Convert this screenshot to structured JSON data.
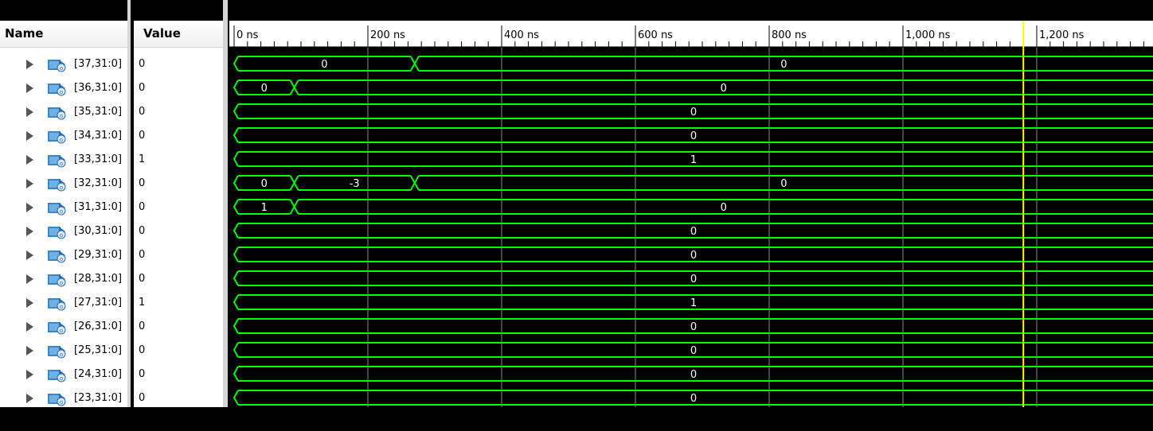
{
  "columns": {
    "name": "Name",
    "value": "Value"
  },
  "signals": [
    {
      "name": "[37,31:0]",
      "value": "0",
      "segments": [
        {
          "from": 0,
          "to": 270,
          "label": "0"
        },
        {
          "from": 270,
          "to": 1400,
          "label": "0"
        }
      ]
    },
    {
      "name": "[36,31:0]",
      "value": "0",
      "segments": [
        {
          "from": 0,
          "to": 90,
          "label": "0"
        },
        {
          "from": 90,
          "to": 1400,
          "label": "0"
        }
      ]
    },
    {
      "name": "[35,31:0]",
      "value": "0",
      "segments": [
        {
          "from": 0,
          "to": 1400,
          "label": "0"
        }
      ]
    },
    {
      "name": "[34,31:0]",
      "value": "0",
      "segments": [
        {
          "from": 0,
          "to": 1400,
          "label": "0"
        }
      ]
    },
    {
      "name": "[33,31:0]",
      "value": "1",
      "segments": [
        {
          "from": 0,
          "to": 1400,
          "label": "1"
        }
      ]
    },
    {
      "name": "[32,31:0]",
      "value": "0",
      "segments": [
        {
          "from": 0,
          "to": 90,
          "label": "0"
        },
        {
          "from": 90,
          "to": 270,
          "label": "-3"
        },
        {
          "from": 270,
          "to": 1400,
          "label": "0"
        }
      ]
    },
    {
      "name": "[31,31:0]",
      "value": "0",
      "segments": [
        {
          "from": 0,
          "to": 90,
          "label": "1"
        },
        {
          "from": 90,
          "to": 1400,
          "label": "0"
        }
      ]
    },
    {
      "name": "[30,31:0]",
      "value": "0",
      "segments": [
        {
          "from": 0,
          "to": 1400,
          "label": "0"
        }
      ]
    },
    {
      "name": "[29,31:0]",
      "value": "0",
      "segments": [
        {
          "from": 0,
          "to": 1400,
          "label": "0"
        }
      ]
    },
    {
      "name": "[28,31:0]",
      "value": "0",
      "segments": [
        {
          "from": 0,
          "to": 1400,
          "label": "0"
        }
      ]
    },
    {
      "name": "[27,31:0]",
      "value": "1",
      "segments": [
        {
          "from": 0,
          "to": 1400,
          "label": "1"
        }
      ]
    },
    {
      "name": "[26,31:0]",
      "value": "0",
      "segments": [
        {
          "from": 0,
          "to": 1400,
          "label": "0"
        }
      ]
    },
    {
      "name": "[25,31:0]",
      "value": "0",
      "segments": [
        {
          "from": 0,
          "to": 1400,
          "label": "0"
        }
      ]
    },
    {
      "name": "[24,31:0]",
      "value": "0",
      "segments": [
        {
          "from": 0,
          "to": 1400,
          "label": "0"
        }
      ]
    },
    {
      "name": "[23,31:0]",
      "value": "0",
      "segments": [
        {
          "from": 0,
          "to": 1400,
          "label": "0"
        }
      ]
    }
  ],
  "timeline": {
    "unit": "ns",
    "tick_labels": [
      "0 ns",
      "200 ns",
      "400 ns",
      "600 ns",
      "800 ns",
      "1,000 ns",
      "1,200 ns"
    ],
    "tick_values": [
      0,
      200,
      400,
      600,
      800,
      1000,
      1200
    ],
    "cursor_time": 1180
  },
  "colors": {
    "wave": "#00ff00",
    "cursor": "#ffff00",
    "grid": "#8c8c8c",
    "background": "#000000",
    "icon_blue": "#3a86c8"
  }
}
